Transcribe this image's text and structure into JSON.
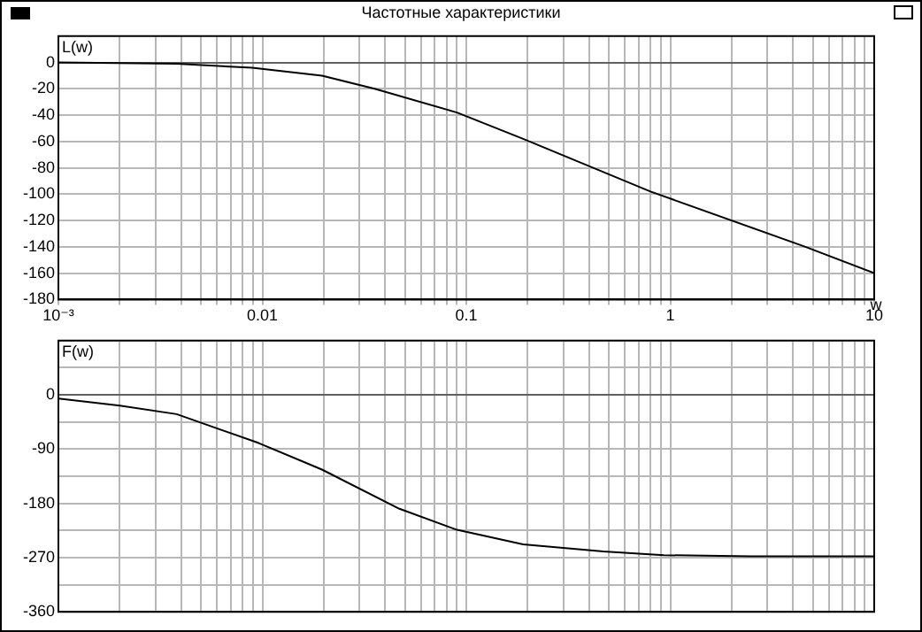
{
  "chart_data": [
    {
      "type": "line",
      "title": "Частотные характеристики",
      "ylabel": "L(w)",
      "xlabel": "w",
      "log": "x",
      "grid": true,
      "legend": false,
      "marker": "none",
      "line_style": "solid",
      "x": [
        0.001,
        0.0038,
        0.0089,
        0.0196,
        0.0355,
        0.09,
        0.19,
        0.8,
        4.6,
        10
      ],
      "series": [
        {
          "color": "#000000",
          "values": [
            0,
            -1,
            -4,
            -10,
            -20,
            -38,
            -58,
            -98,
            -140,
            -160
          ]
        }
      ],
      "xlim": [
        0.001,
        10
      ],
      "xticks": [
        {
          "value": 0.001,
          "label": "10⁻³"
        },
        {
          "value": 0.002,
          "label": null
        },
        {
          "value": 0.003,
          "label": null
        },
        {
          "value": 0.004,
          "label": null
        },
        {
          "value": 0.005,
          "label": null
        },
        {
          "value": 0.006,
          "label": null
        },
        {
          "value": 0.007,
          "label": null
        },
        {
          "value": 0.008,
          "label": null
        },
        {
          "value": 0.009,
          "label": null
        },
        0.01,
        {
          "value": 0.02,
          "label": null
        },
        {
          "value": 0.03,
          "label": null
        },
        {
          "value": 0.04,
          "label": null
        },
        {
          "value": 0.05,
          "label": null
        },
        {
          "value": 0.06,
          "label": null
        },
        {
          "value": 0.07,
          "label": null
        },
        {
          "value": 0.08,
          "label": null
        },
        {
          "value": 0.09,
          "label": null
        },
        0.1,
        {
          "value": 0.2,
          "label": null
        },
        {
          "value": 0.3,
          "label": null
        },
        {
          "value": 0.4,
          "label": null
        },
        {
          "value": 0.5,
          "label": null
        },
        {
          "value": 0.6,
          "label": null
        },
        {
          "value": 0.7,
          "label": null
        },
        {
          "value": 0.8,
          "label": null
        },
        {
          "value": 0.9,
          "label": null
        },
        1,
        {
          "value": 2,
          "label": null
        },
        {
          "value": 3,
          "label": null
        },
        {
          "value": 4,
          "label": null
        },
        {
          "value": 5,
          "label": null
        },
        {
          "value": 6,
          "label": null
        },
        {
          "value": 7,
          "label": null
        },
        {
          "value": 8,
          "label": null
        },
        {
          "value": 9,
          "label": null
        },
        10
      ],
      "ylim": [
        -180,
        20
      ],
      "yticks": [
        -180,
        -160,
        -140,
        -120,
        -100,
        -80,
        -60,
        -40,
        -20,
        0
      ]
    },
    {
      "type": "line",
      "ylabel": "F(w)",
      "log": "x",
      "grid": true,
      "legend": false,
      "marker": "none",
      "line_style": "solid",
      "tick_labels": "y",
      "x": [
        0.001,
        0.002,
        0.0038,
        0.0096,
        0.0196,
        0.047,
        0.09,
        0.19,
        0.47,
        0.93,
        2.5,
        10
      ],
      "series": [
        {
          "color": "#000000",
          "values": [
            -6,
            -18,
            -32,
            -80,
            -124,
            -189,
            -224,
            -248,
            -260,
            -266,
            -268,
            -268
          ]
        }
      ],
      "xlim": [
        0.001,
        10
      ],
      "xticks": [
        0.001,
        {
          "value": 0.002,
          "label": null
        },
        {
          "value": 0.003,
          "label": null
        },
        {
          "value": 0.004,
          "label": null
        },
        {
          "value": 0.005,
          "label": null
        },
        {
          "value": 0.006,
          "label": null
        },
        {
          "value": 0.007,
          "label": null
        },
        {
          "value": 0.008,
          "label": null
        },
        {
          "value": 0.009,
          "label": null
        },
        0.01,
        {
          "value": 0.02,
          "label": null
        },
        {
          "value": 0.03,
          "label": null
        },
        {
          "value": 0.04,
          "label": null
        },
        {
          "value": 0.05,
          "label": null
        },
        {
          "value": 0.06,
          "label": null
        },
        {
          "value": 0.07,
          "label": null
        },
        {
          "value": 0.08,
          "label": null
        },
        {
          "value": 0.09,
          "label": null
        },
        0.1,
        {
          "value": 0.2,
          "label": null
        },
        {
          "value": 0.3,
          "label": null
        },
        {
          "value": 0.4,
          "label": null
        },
        {
          "value": 0.5,
          "label": null
        },
        {
          "value": 0.6,
          "label": null
        },
        {
          "value": 0.7,
          "label": null
        },
        {
          "value": 0.8,
          "label": null
        },
        {
          "value": 0.9,
          "label": null
        },
        1,
        {
          "value": 2,
          "label": null
        },
        {
          "value": 3,
          "label": null
        },
        {
          "value": 4,
          "label": null
        },
        {
          "value": 5,
          "label": null
        },
        {
          "value": 6,
          "label": null
        },
        {
          "value": 7,
          "label": null
        },
        {
          "value": 8,
          "label": null
        },
        {
          "value": 9,
          "label": null
        },
        10
      ],
      "ylim": [
        -360,
        90
      ],
      "yticks": [
        -360,
        {
          "value": -315,
          "label": null
        },
        -270,
        {
          "value": -225,
          "label": null
        },
        -180,
        {
          "value": -135,
          "label": null
        },
        -90,
        {
          "value": -45,
          "label": null
        },
        0,
        {
          "value": 45,
          "label": null
        },
        {
          "value": 90,
          "label": null
        }
      ]
    }
  ]
}
